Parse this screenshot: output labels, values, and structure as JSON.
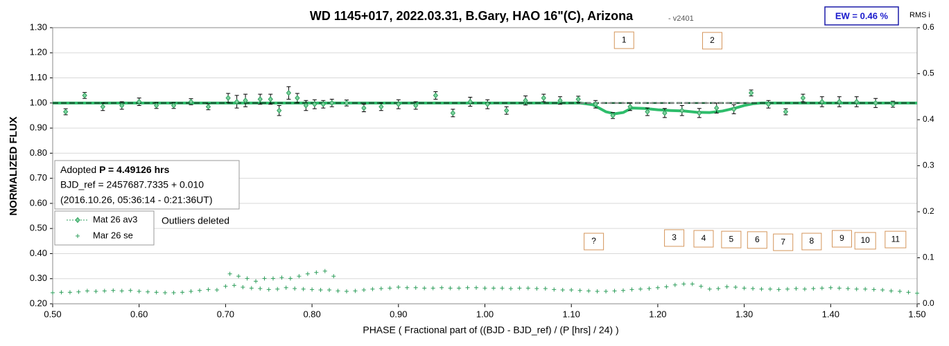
{
  "chart_data": {
    "type": "scatter",
    "title": "WD 1145+017, 2022.03.31, B.Gary, HAO 16\"(C), Arizona",
    "subtitle": "- v2401",
    "ew_label": "EW = 0.46 %",
    "y2_label": "RMS i",
    "y_label": "NORMALIZED FLUX",
    "x_label": "PHASE ( Fractional part of ((BJD - BJD_ref) / (P [hrs] / 24) )",
    "info": {
      "prefix": "Adopted ",
      "period": "P = 4.49126 hrs",
      "line2": "BJD_ref = 2457687.7335 + 0.010",
      "line3": "(2016.10.26, 05:36:14 - 0:21:36UT)"
    },
    "note": "Outliers deleted",
    "xlim": [
      0.5,
      1.5
    ],
    "xticks": [
      {
        "value": 0.5,
        "label": "0.50"
      },
      {
        "value": 0.6,
        "label": "0.60"
      },
      {
        "value": 0.7,
        "label": "0.70"
      },
      {
        "value": 0.8,
        "label": "0.80"
      },
      {
        "value": 0.9,
        "label": "0.90"
      },
      {
        "value": 1.0,
        "label": "1.00"
      },
      {
        "value": 1.1,
        "label": "1.10"
      },
      {
        "value": 1.2,
        "label": "1.20"
      },
      {
        "value": 1.3,
        "label": "1.30"
      },
      {
        "value": 1.4,
        "label": "1.40"
      },
      {
        "value": 1.5,
        "label": "1.50"
      }
    ],
    "ylim": [
      0.2,
      1.3
    ],
    "yticks": [
      {
        "value": 0.2,
        "label": "0.20"
      },
      {
        "value": 0.3,
        "label": "0.30"
      },
      {
        "value": 0.4,
        "label": "0.40"
      },
      {
        "value": 0.5,
        "label": "0.50"
      },
      {
        "value": 0.6,
        "label": "0.60"
      },
      {
        "value": 0.7,
        "label": "0.70"
      },
      {
        "value": 0.8,
        "label": "0.80"
      },
      {
        "value": 0.9,
        "label": "0.90"
      },
      {
        "value": 1.0,
        "label": "1.00"
      },
      {
        "value": 1.1,
        "label": "1.10"
      },
      {
        "value": 1.2,
        "label": "1.20"
      },
      {
        "value": 1.3,
        "label": "1.30"
      }
    ],
    "y2lim": [
      0,
      0.6
    ],
    "y2ticks": [
      {
        "value": 0,
        "label": "0.0"
      },
      0.1,
      0.2,
      0.3,
      0.4,
      0.5,
      0.6
    ],
    "grid": true,
    "baseline": 1,
    "series": [
      {
        "name": "Mat 26 av3",
        "style": "errorbar",
        "color": "#2e9e5b",
        "x": [
          0.515,
          0.537,
          0.558,
          0.58,
          0.6,
          0.62,
          0.64,
          0.66,
          0.68,
          0.703,
          0.713,
          0.723,
          0.74,
          0.752,
          0.762,
          0.773,
          0.783,
          0.793,
          0.803,
          0.813,
          0.823,
          0.84,
          0.86,
          0.88,
          0.9,
          0.92,
          0.943,
          0.963,
          0.983,
          1.003,
          1.025,
          1.047,
          1.068,
          1.087,
          1.108,
          1.128,
          1.148,
          1.168,
          1.188,
          1.208,
          1.228,
          1.248,
          1.268,
          1.288,
          1.308,
          1.328,
          1.348,
          1.368,
          1.39,
          1.41,
          1.43,
          1.452,
          1.472
        ],
        "values": [
          0.965,
          1.03,
          0.985,
          0.99,
          1.005,
          0.99,
          0.99,
          1.005,
          0.985,
          1.02,
          1.005,
          1.01,
          1.015,
          1.015,
          0.97,
          1.04,
          1.02,
          0.99,
          0.995,
          0.995,
          1.0,
          1.0,
          0.98,
          0.985,
          0.995,
          0.99,
          1.03,
          0.96,
          1.005,
          0.995,
          0.97,
          1.01,
          1.02,
          1.01,
          1.015,
          0.995,
          0.95,
          0.985,
          0.965,
          0.96,
          0.97,
          0.96,
          0.98,
          0.975,
          1.04,
          0.995,
          0.965,
          1.02,
          1.005,
          1.005,
          1.005,
          1.0,
          0.995
        ],
        "error": [
          0.012,
          0.012,
          0.015,
          0.015,
          0.015,
          0.012,
          0.012,
          0.012,
          0.012,
          0.018,
          0.025,
          0.025,
          0.02,
          0.02,
          0.02,
          0.025,
          0.018,
          0.02,
          0.018,
          0.015,
          0.015,
          0.012,
          0.015,
          0.015,
          0.018,
          0.015,
          0.015,
          0.015,
          0.018,
          0.018,
          0.015,
          0.018,
          0.015,
          0.015,
          0.012,
          0.015,
          0.012,
          0.015,
          0.015,
          0.018,
          0.02,
          0.018,
          0.02,
          0.018,
          0.012,
          0.015,
          0.012,
          0.015,
          0.02,
          0.02,
          0.02,
          0.018,
          0.012
        ]
      },
      {
        "name": "Mar 26 se",
        "style": "plus",
        "color": "#2e9e5b",
        "axis": "y2",
        "x": [
          0.5,
          0.51,
          0.52,
          0.53,
          0.54,
          0.55,
          0.56,
          0.57,
          0.58,
          0.59,
          0.6,
          0.61,
          0.62,
          0.63,
          0.64,
          0.65,
          0.66,
          0.67,
          0.68,
          0.69,
          0.7,
          0.71,
          0.72,
          0.73,
          0.74,
          0.75,
          0.76,
          0.77,
          0.78,
          0.79,
          0.8,
          0.81,
          0.82,
          0.83,
          0.84,
          0.85,
          0.86,
          0.87,
          0.88,
          0.89,
          0.9,
          0.91,
          0.92,
          0.93,
          0.94,
          0.95,
          0.96,
          0.97,
          0.98,
          0.99,
          1.0,
          1.01,
          1.02,
          1.03,
          1.04,
          1.05,
          1.06,
          1.07,
          1.08,
          1.09,
          1.1,
          1.11,
          1.12,
          1.13,
          1.14,
          1.15,
          1.16,
          1.17,
          1.18,
          1.19,
          1.2,
          1.21,
          1.22,
          1.23,
          1.24,
          1.25,
          1.26,
          1.27,
          1.28,
          1.29,
          1.3,
          1.31,
          1.32,
          1.33,
          1.34,
          1.35,
          1.36,
          1.37,
          1.38,
          1.39,
          1.4,
          1.41,
          1.42,
          1.43,
          1.44,
          1.45,
          1.46,
          1.47,
          1.48,
          1.49,
          1.5,
          0.705,
          0.715,
          0.725,
          0.735,
          0.745,
          0.755,
          0.765,
          0.775,
          0.785,
          0.795,
          0.805,
          0.815,
          0.825
        ],
        "values": [
          0.024,
          0.025,
          0.025,
          0.026,
          0.028,
          0.027,
          0.028,
          0.029,
          0.028,
          0.029,
          0.027,
          0.026,
          0.025,
          0.024,
          0.024,
          0.025,
          0.027,
          0.029,
          0.031,
          0.03,
          0.038,
          0.04,
          0.036,
          0.034,
          0.033,
          0.031,
          0.032,
          0.035,
          0.033,
          0.032,
          0.031,
          0.03,
          0.03,
          0.028,
          0.027,
          0.028,
          0.03,
          0.032,
          0.033,
          0.034,
          0.036,
          0.035,
          0.035,
          0.034,
          0.034,
          0.035,
          0.034,
          0.034,
          0.035,
          0.035,
          0.034,
          0.034,
          0.034,
          0.033,
          0.034,
          0.034,
          0.033,
          0.033,
          0.031,
          0.03,
          0.03,
          0.029,
          0.028,
          0.027,
          0.027,
          0.028,
          0.029,
          0.031,
          0.032,
          0.033,
          0.035,
          0.037,
          0.041,
          0.043,
          0.043,
          0.038,
          0.032,
          0.033,
          0.037,
          0.036,
          0.034,
          0.033,
          0.032,
          0.032,
          0.031,
          0.032,
          0.033,
          0.032,
          0.033,
          0.034,
          0.035,
          0.034,
          0.033,
          0.032,
          0.032,
          0.031,
          0.03,
          0.028,
          0.027,
          0.025,
          0.023,
          0.065,
          0.06,
          0.055,
          0.049,
          0.055,
          0.055,
          0.057,
          0.055,
          0.06,
          0.065,
          0.068,
          0.071,
          0.06
        ]
      },
      {
        "style": "line",
        "color": "#2ebd6b",
        "x": [
          0.5,
          1.11,
          1.125,
          1.14,
          1.15,
          1.16,
          1.17,
          1.185,
          1.2,
          1.215,
          1.23,
          1.245,
          1.26,
          1.275,
          1.29,
          1.3,
          1.31,
          1.32,
          1.5
        ],
        "values": [
          1.0,
          1.0,
          0.993,
          0.965,
          0.957,
          0.962,
          0.98,
          0.978,
          0.973,
          0.97,
          0.968,
          0.963,
          0.962,
          0.968,
          0.98,
          0.99,
          0.997,
          1.0,
          1.0
        ]
      }
    ],
    "annotations": [
      {
        "text": "1",
        "x": 1.161,
        "y": 1.25
      },
      {
        "text": "2",
        "x": 1.263,
        "y": 1.248
      },
      {
        "text": "?",
        "x": 1.126,
        "y": 0.448
      },
      {
        "text": "3",
        "x": 1.219,
        "y": 0.462
      },
      {
        "text": "4",
        "x": 1.253,
        "y": 0.459
      },
      {
        "text": "5",
        "x": 1.285,
        "y": 0.456
      },
      {
        "text": "6",
        "x": 1.315,
        "y": 0.454
      },
      {
        "text": "7",
        "x": 1.345,
        "y": 0.445
      },
      {
        "text": "8",
        "x": 1.378,
        "y": 0.448
      },
      {
        "text": "9",
        "x": 1.413,
        "y": 0.459
      },
      {
        "text": "10",
        "x": 1.44,
        "y": 0.451
      },
      {
        "text": "11",
        "x": 1.475,
        "y": 0.456
      }
    ]
  }
}
